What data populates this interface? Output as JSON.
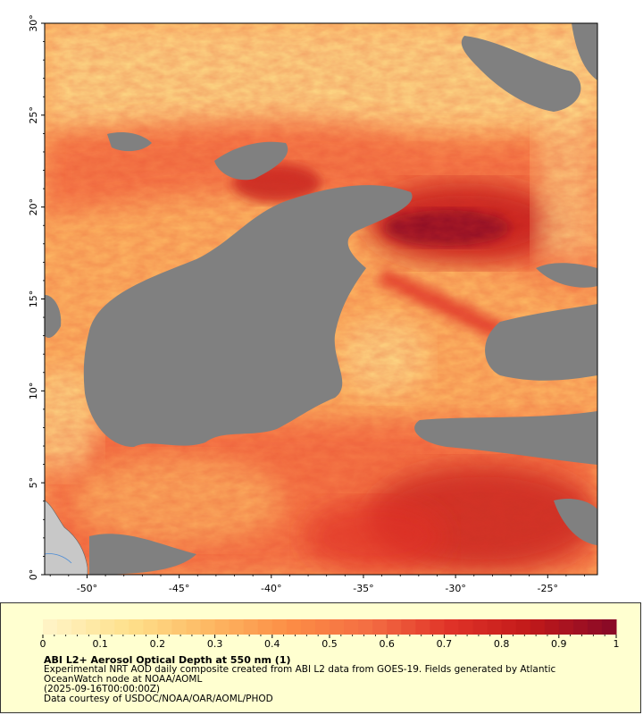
{
  "map": {
    "lat_ticks": [
      {
        "value": 0,
        "label": "0°"
      },
      {
        "value": 5,
        "label": "5°"
      },
      {
        "value": 10,
        "label": "10°"
      },
      {
        "value": 15,
        "label": "15°"
      },
      {
        "value": 20,
        "label": "20°"
      },
      {
        "value": 25,
        "label": "25°"
      },
      {
        "value": 30,
        "label": "30°"
      }
    ],
    "lon_ticks": [
      {
        "value": -50,
        "label": "-50°"
      },
      {
        "value": -45,
        "label": "-45°"
      },
      {
        "value": -40,
        "label": "-40°"
      },
      {
        "value": -35,
        "label": "-35°"
      },
      {
        "value": -30,
        "label": "-30°"
      },
      {
        "value": -25,
        "label": "-25°"
      }
    ],
    "lon_range": [
      -52.3,
      -22.3
    ],
    "lat_range": [
      0,
      30
    ],
    "no_data_color": "#808080",
    "land_color": "#c8c8c8"
  },
  "legend": {
    "ticks": [
      "0",
      "0.1",
      "0.2",
      "0.3",
      "0.4",
      "0.5",
      "0.6",
      "0.7",
      "0.8",
      "0.9",
      "1"
    ],
    "range": [
      0,
      1
    ],
    "colors": [
      "#fff3c4",
      "#fee08b",
      "#fdb863",
      "#fc8d45",
      "#f46d43",
      "#e03328",
      "#c21a1a",
      "#8b0a26"
    ]
  },
  "captions": {
    "title": "ABI L2+ Aerosol Optical Depth at 550 nm (1)",
    "line1": "Experimental NRT AOD daily composite created from ABI L2 data from GOES-19. Fields generated by Atlantic",
    "line2": "OceanWatch node at NOAA/AOML",
    "line3": "(2025-09-16T00:00:00Z)",
    "line4": "Data courtesy of USDOC/NOAA/OAR/AOML/PHOD"
  }
}
